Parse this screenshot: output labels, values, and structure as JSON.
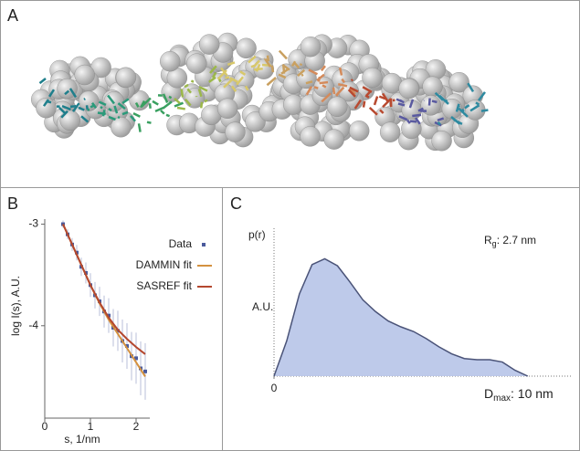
{
  "figure": {
    "panel_label": "A"
  },
  "chart_data": [
    {
      "type": "scatter",
      "panel_label": "B",
      "x_label": "s, 1/nm",
      "y_label": "log I(s), A.U.",
      "xlim": [
        0,
        2.3
      ],
      "ylim": [
        -4.91,
        -2.95
      ],
      "xticks": [
        0,
        1,
        2
      ],
      "yticks": [
        -3,
        -4
      ],
      "legend": "top-right",
      "series": [
        {
          "name": "Data",
          "color": "#4a5a9c",
          "mode": "markers",
          "x": [
            0.4,
            0.5,
            0.6,
            0.7,
            0.8,
            0.9,
            1.0,
            1.1,
            1.2,
            1.3,
            1.4,
            1.5,
            1.6,
            1.7,
            1.8,
            1.9,
            2.0,
            2.1,
            2.2
          ],
          "values": [
            -3.0,
            -3.1,
            -3.2,
            -3.28,
            -3.42,
            -3.48,
            -3.6,
            -3.7,
            -3.76,
            -3.86,
            -3.9,
            -4.02,
            -4.05,
            -4.15,
            -4.2,
            -4.3,
            -4.32,
            -4.42,
            -4.45
          ]
        },
        {
          "name": "DAMMIN fit",
          "color": "#d4913f",
          "mode": "line",
          "x": [
            0.4,
            0.6,
            0.8,
            1.0,
            1.2,
            1.4,
            1.6,
            1.8,
            2.0,
            2.2
          ],
          "values": [
            -3.0,
            -3.2,
            -3.4,
            -3.6,
            -3.78,
            -3.94,
            -4.08,
            -4.22,
            -4.36,
            -4.5
          ]
        },
        {
          "name": "SASREF fit",
          "color": "#b4472e",
          "mode": "line",
          "x": [
            0.4,
            0.6,
            0.8,
            1.0,
            1.2,
            1.4,
            1.6,
            1.8,
            2.0,
            2.2
          ],
          "values": [
            -3.0,
            -3.2,
            -3.4,
            -3.6,
            -3.77,
            -3.92,
            -4.04,
            -4.13,
            -4.21,
            -4.28
          ]
        }
      ]
    },
    {
      "type": "area",
      "panel_label": "C",
      "y_label": "p(r)",
      "y_unit": "A.U.",
      "rg_label": [
        "R",
        "g",
        ": 2.7 nm"
      ],
      "dmax_label": [
        "D",
        "max",
        ": 10 nm"
      ],
      "xlim": [
        0,
        11.7
      ],
      "ylim": [
        0,
        1.26
      ],
      "xticks": [
        0
      ],
      "x": [
        0,
        0.5,
        1,
        1.5,
        2,
        2.5,
        3,
        3.5,
        4,
        4.5,
        5,
        5.5,
        6,
        6.5,
        7,
        7.5,
        8,
        8.5,
        9,
        9.5,
        10
      ],
      "series": [
        {
          "color": "#b7c4e8",
          "values": [
            0,
            0.3,
            0.7,
            0.95,
            1.0,
            0.94,
            0.8,
            0.65,
            0.55,
            0.47,
            0.42,
            0.38,
            0.32,
            0.25,
            0.19,
            0.15,
            0.14,
            0.14,
            0.12,
            0.05,
            0
          ]
        }
      ]
    }
  ]
}
